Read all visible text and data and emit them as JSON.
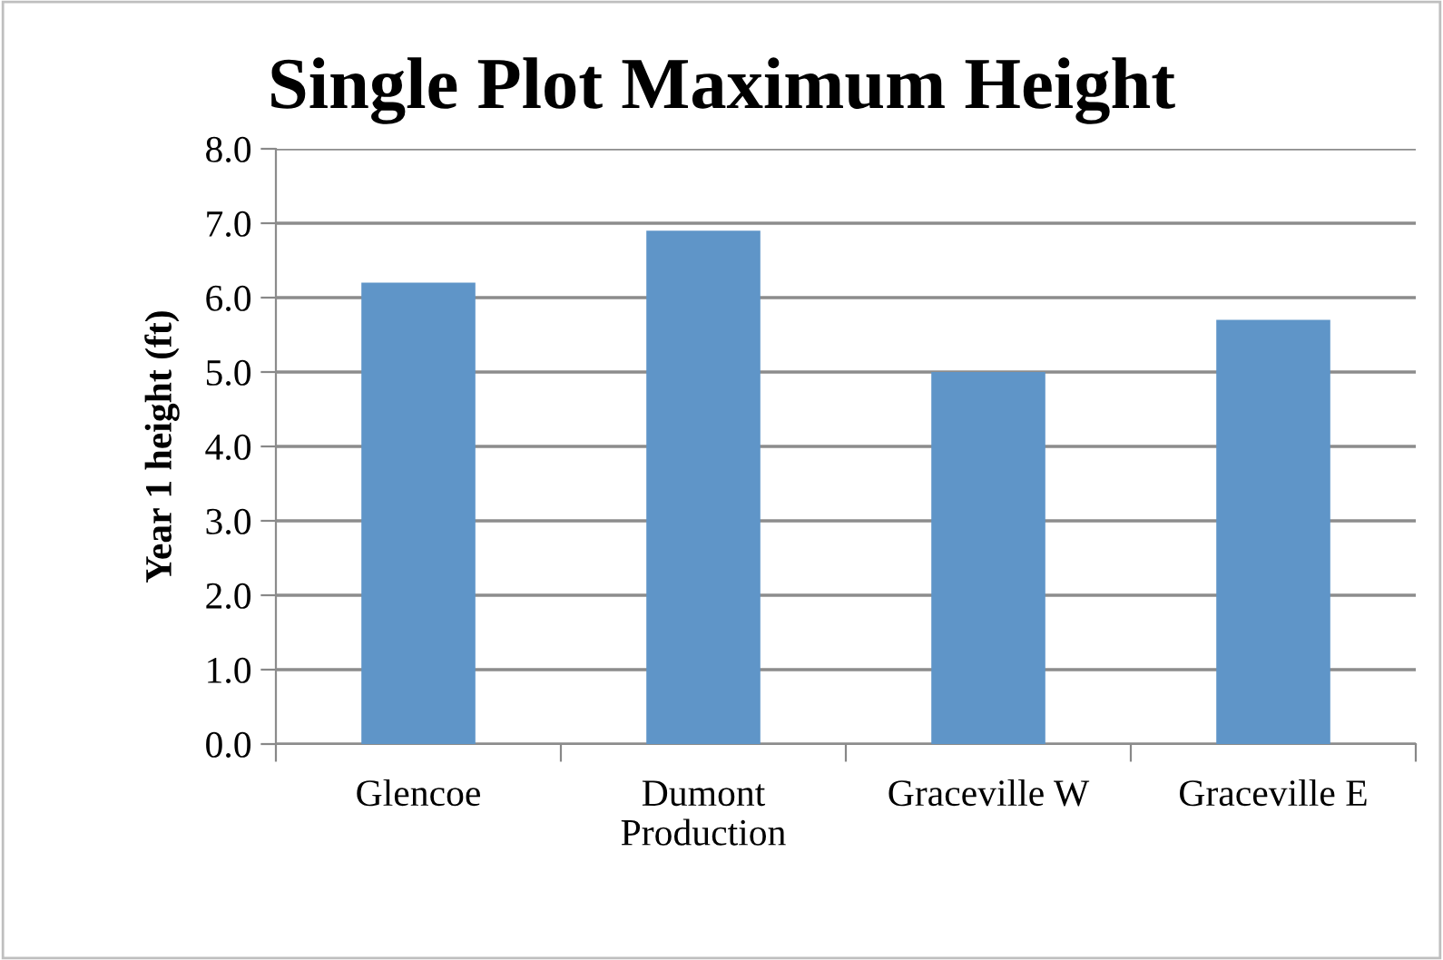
{
  "chart_data": {
    "type": "bar",
    "title": "Single Plot Maximum Height",
    "ylabel": "Year 1 height (ft)",
    "categories": [
      "Glencoe",
      "Dumont\nProduction",
      "Graceville W",
      "Graceville E"
    ],
    "values": [
      6.2,
      6.9,
      5.0,
      5.7
    ],
    "color": "#5f95c8",
    "ylim": [
      0,
      8
    ],
    "yticks": [
      {
        "value": 0,
        "label": "0.0"
      },
      {
        "value": 1,
        "label": "1.0"
      },
      {
        "value": 2,
        "label": "2.0"
      },
      {
        "value": 3,
        "label": "3.0"
      },
      {
        "value": 4,
        "label": "4.0"
      },
      {
        "value": 5,
        "label": "5.0"
      },
      {
        "value": 6,
        "label": "6.0"
      },
      {
        "value": 7,
        "label": "7.0"
      },
      {
        "value": 8,
        "label": "8.0"
      }
    ],
    "grid": "y"
  }
}
